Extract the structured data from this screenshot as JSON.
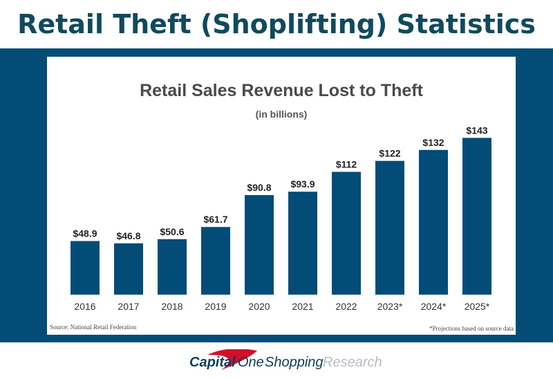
{
  "page_title": "Retail Theft (Shoplifting) Statistics",
  "chart_data": {
    "type": "bar",
    "title": "Retail Sales Revenue Lost to Theft",
    "subtitle": "(in billions)",
    "categories": [
      "2016",
      "2017",
      "2018",
      "2019",
      "2020",
      "2021",
      "2022",
      "2023*",
      "2024*",
      "2025*"
    ],
    "values": [
      48.9,
      46.8,
      50.6,
      61.7,
      90.8,
      93.9,
      112,
      122,
      132,
      143
    ],
    "data_labels": [
      "$48.9",
      "$46.8",
      "$50.6",
      "$61.7",
      "$90.8",
      "$93.9",
      "$112",
      "$122",
      "$132",
      "$143"
    ],
    "bar_color": "#034c78",
    "ylim": [
      0,
      150
    ],
    "grid": false,
    "source": "Source: National Retail Federation",
    "note": "*Projections based on source data"
  },
  "footer": {
    "brand_a": "Capital",
    "brand_b": "One",
    "brand_c": "Shopping",
    "brand_d": "Research"
  },
  "colors": {
    "band": "#034c78",
    "title": "#0f4a5e",
    "logo_red": "#d0102a"
  }
}
